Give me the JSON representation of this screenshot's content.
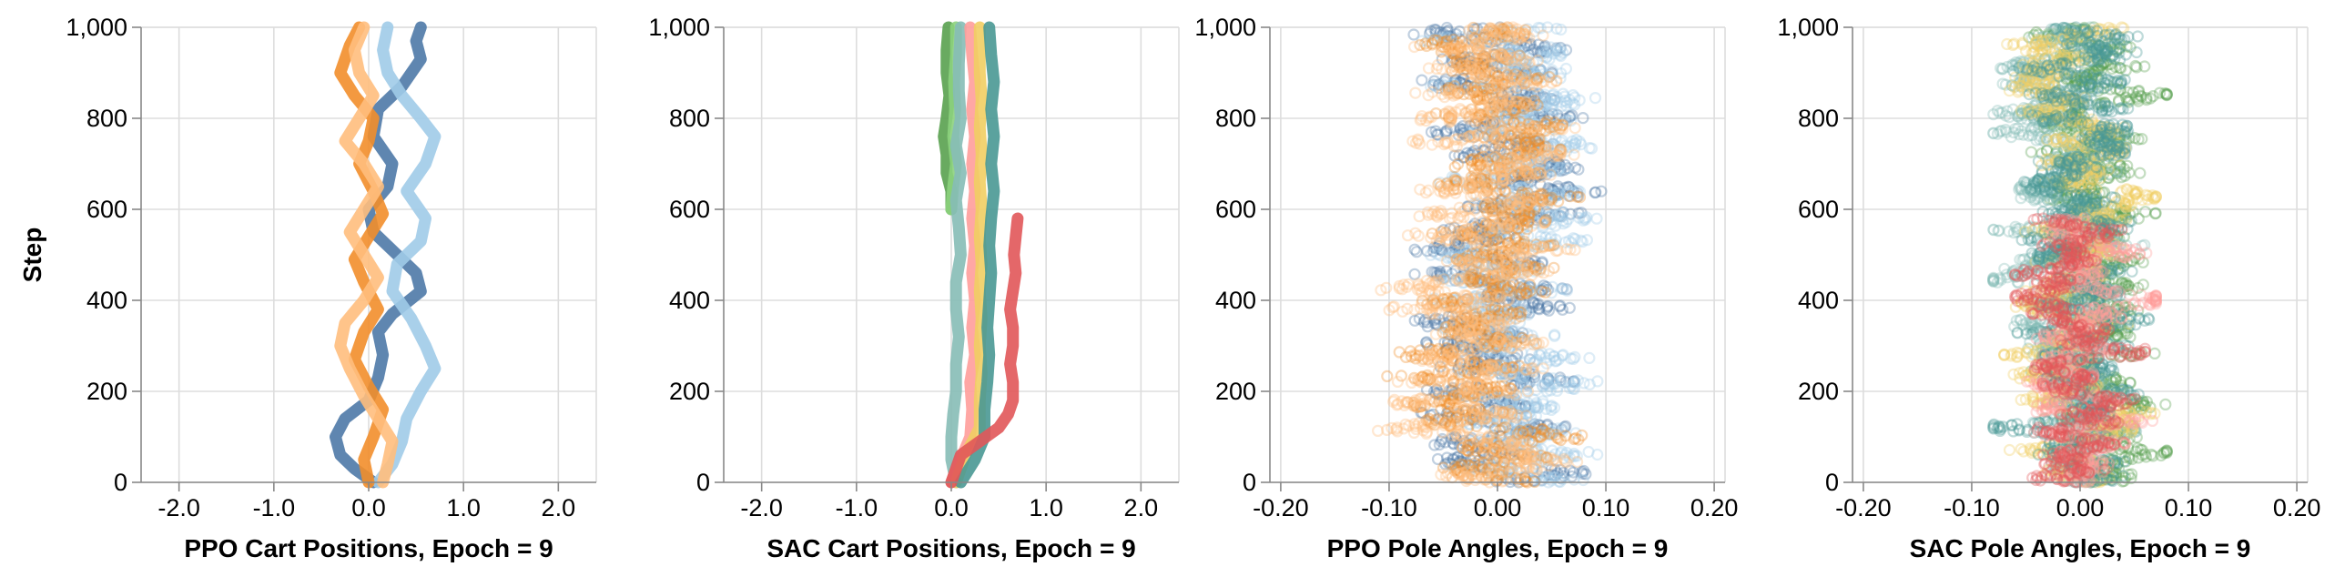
{
  "chart_data": [
    {
      "type": "line",
      "xlabel": "PPO Cart Positions, Epoch = 9",
      "ylabel": "Step",
      "xlim": [
        -2.4,
        2.4
      ],
      "ylim": [
        0,
        1000
      ],
      "xticks": [
        -2.0,
        -1.0,
        0.0,
        1.0,
        2.0
      ],
      "xtick_labels": [
        "-2.0",
        "-1.0",
        "0.0",
        "1.0",
        "2.0"
      ],
      "yticks": [
        0,
        200,
        400,
        600,
        800,
        1000
      ],
      "ytick_labels": [
        "0",
        "200",
        "400",
        "600",
        "800",
        "1,000"
      ],
      "grid": true,
      "series": [
        {
          "color": "#4e79a7",
          "points": [
            [
              0.05,
              0
            ],
            [
              -0.15,
              30
            ],
            [
              -0.3,
              60
            ],
            [
              -0.35,
              100
            ],
            [
              -0.25,
              140
            ],
            [
              0.0,
              180
            ],
            [
              0.1,
              230
            ],
            [
              0.15,
              280
            ],
            [
              0.1,
              330
            ],
            [
              0.25,
              370
            ],
            [
              0.55,
              420
            ],
            [
              0.5,
              460
            ],
            [
              0.3,
              500
            ],
            [
              0.05,
              550
            ],
            [
              0.0,
              600
            ],
            [
              0.2,
              650
            ],
            [
              0.25,
              700
            ],
            [
              0.05,
              760
            ],
            [
              0.1,
              820
            ],
            [
              0.35,
              870
            ],
            [
              0.55,
              930
            ],
            [
              0.5,
              970
            ],
            [
              0.55,
              1000
            ]
          ]
        },
        {
          "color": "#a0cbe8",
          "points": [
            [
              0.1,
              0
            ],
            [
              0.25,
              40
            ],
            [
              0.35,
              90
            ],
            [
              0.4,
              140
            ],
            [
              0.55,
              200
            ],
            [
              0.7,
              250
            ],
            [
              0.6,
              300
            ],
            [
              0.45,
              360
            ],
            [
              0.25,
              420
            ],
            [
              0.3,
              480
            ],
            [
              0.55,
              530
            ],
            [
              0.6,
              580
            ],
            [
              0.4,
              640
            ],
            [
              0.6,
              700
            ],
            [
              0.7,
              760
            ],
            [
              0.55,
              800
            ],
            [
              0.35,
              850
            ],
            [
              0.2,
              900
            ],
            [
              0.15,
              950
            ],
            [
              0.2,
              1000
            ]
          ]
        },
        {
          "color": "#f28e2b",
          "points": [
            [
              0.0,
              0
            ],
            [
              -0.05,
              50
            ],
            [
              0.05,
              100
            ],
            [
              0.15,
              160
            ],
            [
              0.0,
              210
            ],
            [
              -0.15,
              270
            ],
            [
              -0.05,
              330
            ],
            [
              0.1,
              380
            ],
            [
              -0.05,
              440
            ],
            [
              -0.15,
              490
            ],
            [
              0.0,
              540
            ],
            [
              0.15,
              590
            ],
            [
              0.05,
              640
            ],
            [
              -0.1,
              700
            ],
            [
              0.0,
              750
            ],
            [
              0.05,
              800
            ],
            [
              -0.15,
              850
            ],
            [
              -0.3,
              900
            ],
            [
              -0.2,
              960
            ],
            [
              -0.1,
              1000
            ]
          ]
        },
        {
          "color": "#ffbe7d",
          "points": [
            [
              0.15,
              0
            ],
            [
              0.2,
              40
            ],
            [
              0.25,
              90
            ],
            [
              0.1,
              140
            ],
            [
              -0.05,
              190
            ],
            [
              -0.2,
              250
            ],
            [
              -0.3,
              300
            ],
            [
              -0.25,
              350
            ],
            [
              -0.05,
              400
            ],
            [
              0.1,
              450
            ],
            [
              -0.05,
              500
            ],
            [
              -0.2,
              550
            ],
            [
              -0.05,
              600
            ],
            [
              0.1,
              650
            ],
            [
              -0.05,
              700
            ],
            [
              -0.25,
              750
            ],
            [
              -0.1,
              800
            ],
            [
              0.05,
              850
            ],
            [
              -0.1,
              900
            ],
            [
              -0.15,
              950
            ],
            [
              -0.05,
              1000
            ]
          ]
        }
      ]
    },
    {
      "type": "line",
      "xlabel": "SAC Cart Positions, Epoch = 9",
      "ylabel": "",
      "xlim": [
        -2.4,
        2.4
      ],
      "ylim": [
        0,
        1000
      ],
      "xticks": [
        -2.0,
        -1.0,
        0.0,
        1.0,
        2.0
      ],
      "xtick_labels": [
        "-2.0",
        "-1.0",
        "0.0",
        "1.0",
        "2.0"
      ],
      "yticks": [
        0,
        200,
        400,
        600,
        800,
        1000
      ],
      "ytick_labels": [
        "0",
        "200",
        "400",
        "600",
        "800",
        "1,000"
      ],
      "grid": true,
      "series": [
        {
          "color": "#59a14f",
          "points": [
            [
              0.0,
              600
            ],
            [
              0.0,
              640
            ],
            [
              -0.05,
              680
            ],
            [
              -0.05,
              720
            ],
            [
              -0.08,
              760
            ],
            [
              -0.05,
              800
            ],
            [
              -0.02,
              850
            ],
            [
              -0.05,
              900
            ],
            [
              -0.05,
              950
            ],
            [
              -0.03,
              1000
            ]
          ]
        },
        {
          "color": "#8cd17d",
          "points": [
            [
              0.0,
              600
            ],
            [
              0.02,
              650
            ],
            [
              0.05,
              700
            ],
            [
              0.02,
              760
            ],
            [
              0.04,
              820
            ],
            [
              0.03,
              880
            ],
            [
              0.05,
              940
            ],
            [
              0.05,
              1000
            ]
          ]
        },
        {
          "color": "#86bcb6",
          "points": [
            [
              0.05,
              0
            ],
            [
              0.0,
              50
            ],
            [
              0.0,
              100
            ],
            [
              0.02,
              150
            ],
            [
              0.05,
              200
            ],
            [
              0.05,
              260
            ],
            [
              0.08,
              320
            ],
            [
              0.05,
              380
            ],
            [
              0.05,
              440
            ],
            [
              0.1,
              500
            ],
            [
              0.08,
              560
            ],
            [
              0.05,
              620
            ],
            [
              0.1,
              680
            ],
            [
              0.05,
              740
            ],
            [
              0.1,
              800
            ],
            [
              0.08,
              860
            ],
            [
              0.08,
              920
            ],
            [
              0.1,
              1000
            ]
          ]
        },
        {
          "color": "#ff9d9a",
          "points": [
            [
              0.0,
              0
            ],
            [
              0.1,
              50
            ],
            [
              0.2,
              100
            ],
            [
              0.22,
              160
            ],
            [
              0.2,
              220
            ],
            [
              0.25,
              280
            ],
            [
              0.22,
              340
            ],
            [
              0.25,
              400
            ],
            [
              0.22,
              460
            ],
            [
              0.25,
              520
            ],
            [
              0.22,
              580
            ],
            [
              0.25,
              640
            ],
            [
              0.22,
              700
            ],
            [
              0.25,
              760
            ],
            [
              0.22,
              820
            ],
            [
              0.25,
              880
            ],
            [
              0.22,
              940
            ],
            [
              0.2,
              1000
            ]
          ]
        },
        {
          "color": "#f1ce63",
          "points": [
            [
              0.05,
              0
            ],
            [
              0.15,
              60
            ],
            [
              0.3,
              120
            ],
            [
              0.3,
              180
            ],
            [
              0.32,
              240
            ],
            [
              0.3,
              300
            ],
            [
              0.32,
              360
            ],
            [
              0.3,
              420
            ],
            [
              0.32,
              480
            ],
            [
              0.3,
              540
            ],
            [
              0.32,
              600
            ],
            [
              0.3,
              660
            ],
            [
              0.32,
              720
            ],
            [
              0.3,
              780
            ],
            [
              0.32,
              840
            ],
            [
              0.3,
              900
            ],
            [
              0.3,
              960
            ],
            [
              0.3,
              1000
            ]
          ]
        },
        {
          "color": "#499894",
          "points": [
            [
              0.1,
              0
            ],
            [
              0.25,
              50
            ],
            [
              0.35,
              100
            ],
            [
              0.35,
              160
            ],
            [
              0.38,
              220
            ],
            [
              0.4,
              280
            ],
            [
              0.38,
              340
            ],
            [
              0.4,
              400
            ],
            [
              0.42,
              460
            ],
            [
              0.4,
              520
            ],
            [
              0.42,
              580
            ],
            [
              0.45,
              640
            ],
            [
              0.42,
              700
            ],
            [
              0.45,
              760
            ],
            [
              0.42,
              820
            ],
            [
              0.45,
              880
            ],
            [
              0.42,
              940
            ],
            [
              0.4,
              1000
            ]
          ]
        },
        {
          "color": "#e15759",
          "points": [
            [
              0.0,
              0
            ],
            [
              0.05,
              30
            ],
            [
              0.1,
              60
            ],
            [
              0.3,
              90
            ],
            [
              0.5,
              120
            ],
            [
              0.6,
              150
            ],
            [
              0.65,
              180
            ],
            [
              0.65,
              220
            ],
            [
              0.62,
              260
            ],
            [
              0.65,
              300
            ],
            [
              0.65,
              340
            ],
            [
              0.62,
              380
            ],
            [
              0.65,
              420
            ],
            [
              0.68,
              460
            ],
            [
              0.66,
              500
            ],
            [
              0.68,
              540
            ],
            [
              0.7,
              580
            ]
          ]
        }
      ]
    },
    {
      "type": "scatter",
      "xlabel": "PPO Pole Angles, Epoch = 9",
      "ylabel": "",
      "xlim": [
        -0.21,
        0.21
      ],
      "ylim": [
        0,
        1000
      ],
      "xticks": [
        -0.2,
        -0.1,
        0.0,
        0.1,
        0.2
      ],
      "xtick_labels": [
        "-0.20",
        "-0.10",
        "0.00",
        "0.10",
        "0.20"
      ],
      "yticks": [
        0,
        200,
        400,
        600,
        800,
        1000
      ],
      "ytick_labels": [
        "0",
        "200",
        "400",
        "600",
        "800",
        "1,000"
      ],
      "grid": true,
      "marker": "hollow-circle",
      "opacity": 0.35,
      "series": [
        {
          "color": "#4e79a7",
          "spread": 0.045,
          "range": [
            -0.1,
            0.1
          ],
          "steps": [
            0,
            1000
          ],
          "count": 1000
        },
        {
          "color": "#a0cbe8",
          "spread": 0.05,
          "range": [
            -0.1,
            0.12
          ],
          "steps": [
            0,
            1000
          ],
          "count": 1000
        },
        {
          "color": "#f28e2b",
          "spread": 0.045,
          "range": [
            -0.12,
            0.12
          ],
          "steps": [
            0,
            1000
          ],
          "count": 1000
        },
        {
          "color": "#ffbe7d",
          "spread": 0.05,
          "range": [
            -0.13,
            0.12
          ],
          "steps": [
            0,
            1000
          ],
          "count": 1000
        }
      ]
    },
    {
      "type": "scatter",
      "xlabel": "SAC Pole Angles, Epoch = 9",
      "ylabel": "",
      "xlim": [
        -0.21,
        0.21
      ],
      "ylim": [
        0,
        1000
      ],
      "xticks": [
        -0.2,
        -0.1,
        0.0,
        0.1,
        0.2
      ],
      "xtick_labels": [
        "-0.20",
        "-0.10",
        "0.00",
        "0.10",
        "0.20"
      ],
      "yticks": [
        0,
        200,
        400,
        600,
        800,
        1000
      ],
      "ytick_labels": [
        "0",
        "200",
        "400",
        "600",
        "800",
        "1,000"
      ],
      "grid": true,
      "marker": "hollow-circle",
      "opacity": 0.35,
      "series": [
        {
          "color": "#59a14f",
          "spread": 0.035,
          "range": [
            -0.08,
            0.08
          ],
          "steps": [
            0,
            1000
          ],
          "count": 1000
        },
        {
          "color": "#86bcb6",
          "spread": 0.03,
          "range": [
            -0.08,
            0.06
          ],
          "steps": [
            0,
            1000
          ],
          "count": 1000
        },
        {
          "color": "#f1ce63",
          "spread": 0.03,
          "range": [
            -0.07,
            0.07
          ],
          "steps": [
            0,
            1000
          ],
          "count": 1000
        },
        {
          "color": "#499894",
          "spread": 0.03,
          "range": [
            -0.08,
            0.08
          ],
          "steps": [
            0,
            1000
          ],
          "count": 1000
        },
        {
          "color": "#ff9d9a",
          "spread": 0.025,
          "range": [
            -0.07,
            0.07
          ],
          "steps": [
            0,
            580
          ],
          "count": 580
        },
        {
          "color": "#e15759",
          "spread": 0.025,
          "range": [
            -0.06,
            0.06
          ],
          "steps": [
            0,
            580
          ],
          "count": 580
        }
      ]
    }
  ]
}
